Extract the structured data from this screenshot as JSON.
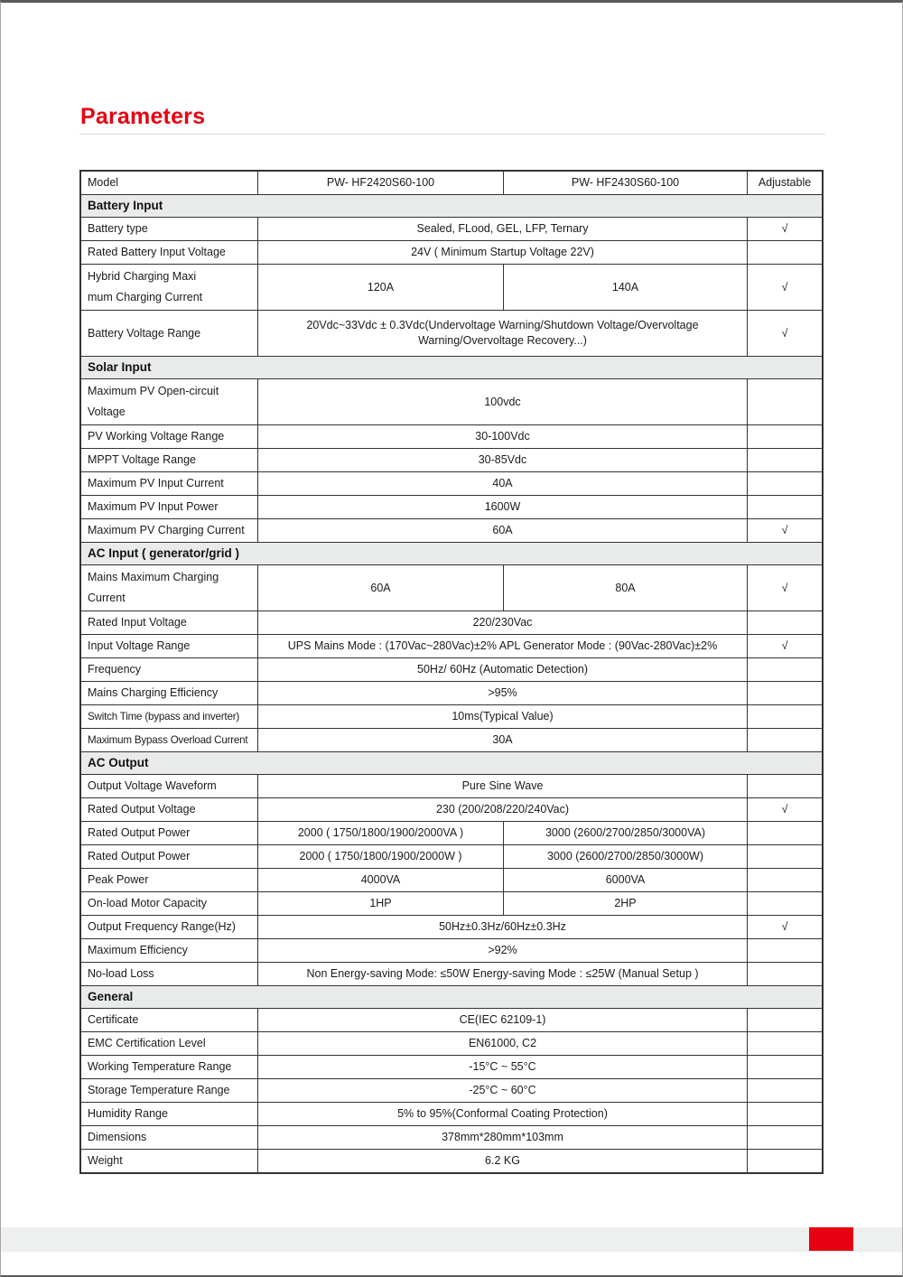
{
  "page": {
    "title": "Parameters"
  },
  "colors": {
    "accent_red": "#e60012",
    "section_header_bg": "#e9ebea",
    "table_border": "#333333",
    "footer_band_bg": "#edf0ee"
  },
  "table": {
    "rows": [
      {
        "type": "cols4",
        "label": "Model",
        "val1": "PW- HF2420S60-100",
        "val2": "PW- HF2430S60-100",
        "check": "Adjustable"
      },
      {
        "type": "section",
        "label": "Battery Input"
      },
      {
        "type": "merged",
        "label": "Battery type",
        "value": "Sealed, FLood, GEL, LFP, Ternary",
        "check": "√"
      },
      {
        "type": "merged",
        "label": "Rated Battery Input Voltage",
        "value": "24V ( Minimum Startup Voltage 22V)",
        "check": ""
      },
      {
        "type": "cols4",
        "tall": true,
        "label": "Hybrid Charging Maxi\nmum Charging Current",
        "val1": "120A",
        "val2": "140A",
        "check": "√"
      },
      {
        "type": "merged",
        "tall": true,
        "label": "Battery Voltage Range",
        "value": "20Vdc~33Vdc ± 0.3Vdc(Undervoltage Warning/Shutdown Voltage/Overvoltage Warning/Overvoltage Recovery...)",
        "check": "√"
      },
      {
        "type": "section",
        "label": "Solar Input"
      },
      {
        "type": "merged",
        "tall": true,
        "label": "Maximum PV Open-circuit\nVoltage",
        "value": "100vdc",
        "check": ""
      },
      {
        "type": "merged",
        "label": "PV Working Voltage Range",
        "value": "30-100Vdc",
        "check": ""
      },
      {
        "type": "merged",
        "label": "MPPT Voltage Range",
        "value": "30-85Vdc",
        "check": ""
      },
      {
        "type": "merged",
        "label": "Maximum PV Input Current",
        "value": "40A",
        "check": ""
      },
      {
        "type": "merged",
        "label": "Maximum PV Input Power",
        "value": "1600W",
        "check": ""
      },
      {
        "type": "merged",
        "label": "Maximum PV Charging Current",
        "value": "60A",
        "check": "√"
      },
      {
        "type": "section",
        "label": "AC Input ( generator/grid )"
      },
      {
        "type": "cols4",
        "tall": true,
        "label": "Mains Maximum Charging\nCurrent",
        "val1": "60A",
        "val2": "80A",
        "check": "√"
      },
      {
        "type": "merged",
        "label": "Rated Input Voltage",
        "value": "220/230Vac",
        "check": ""
      },
      {
        "type": "merged",
        "label": "Input Voltage Range",
        "value": "UPS Mains Mode : (170Vac~280Vac)±2% APL Generator Mode : (90Vac-280Vac)±2%",
        "check": "√"
      },
      {
        "type": "merged",
        "label": "Frequency",
        "value": "50Hz/ 60Hz (Automatic Detection)",
        "check": ""
      },
      {
        "type": "merged",
        "label": "Mains Charging Efficiency",
        "value": ">95%",
        "check": ""
      },
      {
        "type": "merged",
        "small": true,
        "label": "Switch Time (bypass and inverter)",
        "value": "10ms(Typical Value)",
        "check": ""
      },
      {
        "type": "merged",
        "small": true,
        "label": "Maximum Bypass Overload Current",
        "value": "30A",
        "check": ""
      },
      {
        "type": "section",
        "label": "AC Output"
      },
      {
        "type": "merged",
        "label": "Output Voltage Waveform",
        "value": "Pure Sine Wave",
        "check": ""
      },
      {
        "type": "merged",
        "label": "Rated Output Voltage",
        "value": "230 (200/208/220/240Vac)",
        "check": "√"
      },
      {
        "type": "cols4",
        "label": "Rated Output Power",
        "val1": "2000 ( 1750/1800/1900/2000VA )",
        "val2": "3000 (2600/2700/2850/3000VA)",
        "check": ""
      },
      {
        "type": "cols4",
        "label": "Rated Output Power",
        "val1": "2000 ( 1750/1800/1900/2000W )",
        "val2": "3000 (2600/2700/2850/3000W)",
        "check": ""
      },
      {
        "type": "cols4",
        "label": "Peak Power",
        "val1": "4000VA",
        "val2": "6000VA",
        "check": ""
      },
      {
        "type": "cols4",
        "label": "On-load Motor Capacity",
        "val1": "1HP",
        "val2": "2HP",
        "check": ""
      },
      {
        "type": "merged",
        "label": "Output Frequency Range(Hz)",
        "value": "50Hz±0.3Hz/60Hz±0.3Hz",
        "check": "√"
      },
      {
        "type": "merged",
        "label": "Maximum Efficiency",
        "value": ">92%",
        "check": ""
      },
      {
        "type": "merged",
        "label": "No-load Loss",
        "value": "Non Energy-saving Mode: ≤50W  Energy-saving Mode : ≤25W (Manual Setup )",
        "check": ""
      },
      {
        "type": "section",
        "label": "General"
      },
      {
        "type": "merged",
        "label": "Certificate",
        "value": "CE(IEC 62109-1)",
        "check": ""
      },
      {
        "type": "merged",
        "label": "EMC Certification Level",
        "value": "EN61000, C2",
        "check": ""
      },
      {
        "type": "merged",
        "label": "Working Temperature Range",
        "value": "-15°C ~ 55°C",
        "check": ""
      },
      {
        "type": "merged",
        "label": "Storage Temperature Range",
        "value": "-25°C ~ 60°C",
        "check": ""
      },
      {
        "type": "merged",
        "label": "Humidity Range",
        "value": "5% to 95%(Conformal Coating Protection)",
        "check": ""
      },
      {
        "type": "merged",
        "label": "Dimensions",
        "value": "378mm*280mm*103mm",
        "check": ""
      },
      {
        "type": "merged",
        "label": "Weight",
        "value": "6.2 KG",
        "check": ""
      }
    ]
  }
}
